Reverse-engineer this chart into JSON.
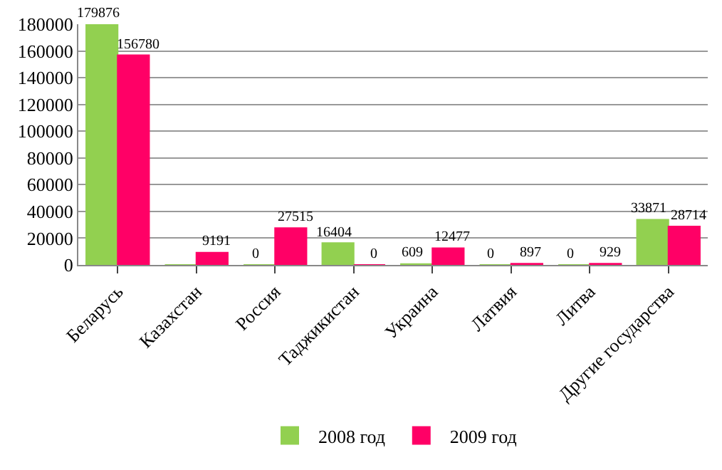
{
  "chart_data": {
    "type": "bar",
    "categories": [
      "Беларусь",
      "Казахстан",
      "Россия",
      "Таджикистан",
      "Украина",
      "Латвия",
      "Литва",
      "Другие государства"
    ],
    "series": [
      {
        "name": "2008 год",
        "color": "#92d050",
        "values": [
          179876,
          0,
          0,
          16404,
          609,
          0,
          0,
          33871
        ],
        "value_labels": [
          "179876",
          null,
          "0",
          "16404",
          "609",
          "0",
          "0",
          "33871"
        ]
      },
      {
        "name": "2009 год",
        "color": "#ff0066",
        "values": [
          156780,
          9191,
          27515,
          0,
          12477,
          897,
          929,
          28714
        ],
        "value_labels": [
          "156780",
          "9191",
          "27515",
          "0",
          "12477",
          "897",
          "929",
          "28714"
        ]
      }
    ],
    "ylim": [
      0,
      180000
    ],
    "yticks": [
      0,
      20000,
      40000,
      60000,
      80000,
      100000,
      120000,
      140000,
      160000,
      180000
    ],
    "grid": "y",
    "legend": "bottom"
  }
}
